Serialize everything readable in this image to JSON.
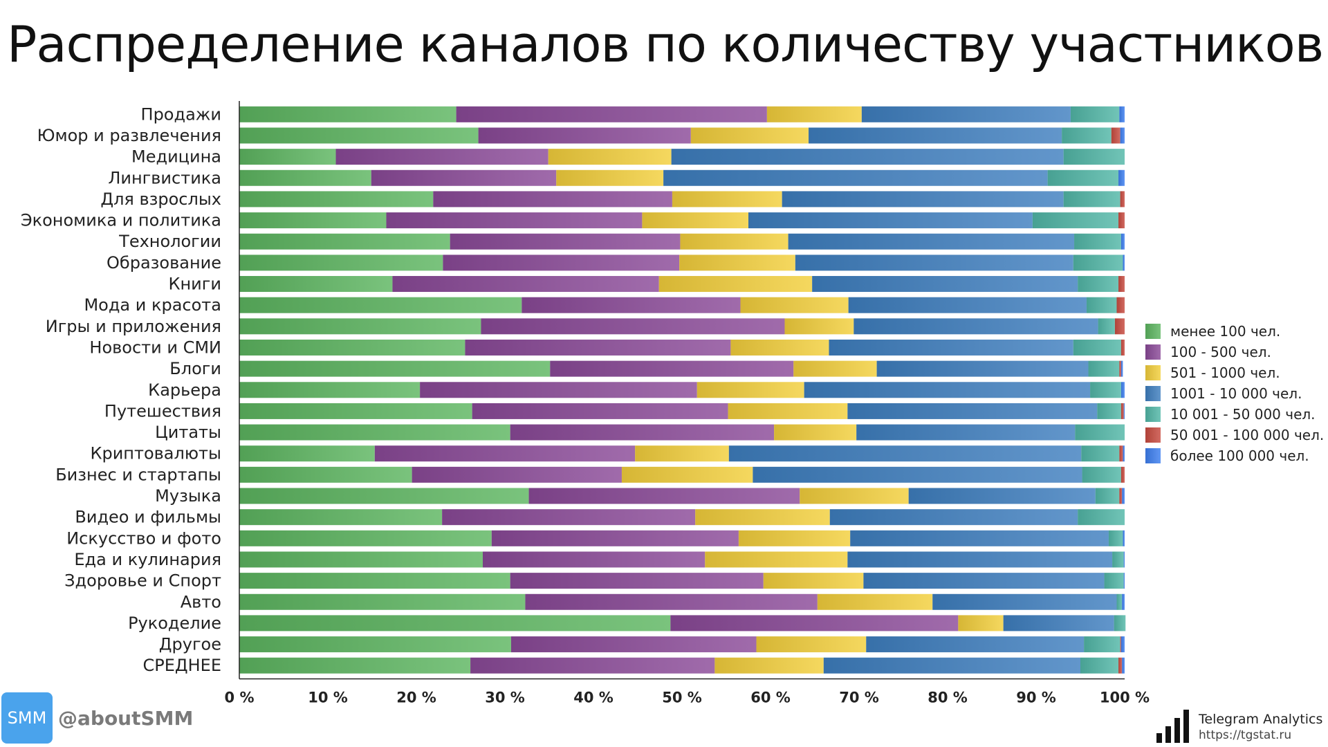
{
  "title": "Распределение каналов по количеству участников",
  "chart_data": {
    "type": "bar",
    "orientation": "horizontal",
    "stacked": true,
    "percent": true,
    "title": "Распределение каналов по количеству участников",
    "xlim": [
      0,
      100
    ],
    "xticks": [
      "0 %",
      "10 %",
      "20 %",
      "30 %",
      "40 %",
      "50 %",
      "60 %",
      "70 %",
      "80 %",
      "90 %",
      "100 %"
    ],
    "legend_position": "right",
    "categories": [
      "Продажи",
      "Юмор и развлечения",
      "Медицина",
      "Лингвистика",
      "Для взрослых",
      "Экономика и политика",
      "Технологии",
      "Образование",
      "Книги",
      "Мода и красота",
      "Игры и приложения",
      "Новости и СМИ",
      "Блоги",
      "Карьера",
      "Путешествия",
      "Цитаты",
      "Криптовалюты",
      "Бизнес и стартапы",
      "Музыка",
      "Видео и фильмы",
      "Искусство и фото",
      "Еда и кулинария",
      "Здоровье и Спорт",
      "Авто",
      "Рукоделие",
      "Другое",
      "СРЕДНЕЕ"
    ],
    "series": [
      {
        "name": "менее 100 чел.",
        "color": "#5db661",
        "values": [
          24.5,
          27.0,
          10.9,
          14.9,
          21.9,
          16.6,
          23.8,
          23.0,
          17.3,
          31.9,
          27.3,
          25.5,
          35.1,
          20.4,
          26.3,
          30.6,
          15.3,
          19.5,
          32.7,
          22.9,
          28.5,
          27.5,
          30.6,
          32.3,
          48.7,
          30.7,
          26.1
        ]
      },
      {
        "name": "100 - 500 чел.",
        "color": "#8b4a98",
        "values": [
          35.1,
          24.0,
          24.0,
          20.9,
          27.0,
          28.9,
          26.0,
          26.7,
          30.1,
          24.7,
          34.3,
          30.0,
          27.5,
          31.3,
          28.9,
          29.8,
          29.4,
          23.7,
          30.6,
          28.6,
          27.9,
          25.1,
          28.6,
          33.0,
          32.5,
          27.7,
          27.6
        ]
      },
      {
        "name": "501 - 1000 чел.",
        "color": "#f3cf3c",
        "values": [
          10.7,
          13.3,
          13.9,
          12.1,
          12.4,
          12.0,
          12.2,
          13.1,
          17.3,
          12.2,
          7.8,
          11.1,
          9.4,
          12.1,
          13.5,
          9.3,
          10.6,
          14.8,
          12.3,
          15.2,
          12.6,
          16.1,
          11.3,
          13.0,
          5.1,
          12.4,
          12.3
        ]
      },
      {
        "name": "1001 - 10 000 чел.",
        "color": "#3f7fc0",
        "values": [
          23.6,
          28.6,
          44.3,
          43.4,
          31.8,
          32.1,
          32.3,
          31.4,
          30.0,
          26.9,
          27.6,
          27.6,
          23.9,
          32.3,
          28.2,
          24.7,
          39.8,
          37.2,
          21.1,
          28.0,
          29.2,
          29.9,
          27.2,
          20.8,
          12.5,
          24.6,
          29.0
        ]
      },
      {
        "name": "10 001 - 50 000 чел.",
        "color": "#52b7a7",
        "values": [
          5.5,
          5.6,
          6.9,
          8.0,
          6.4,
          9.7,
          5.3,
          5.6,
          4.6,
          3.4,
          1.9,
          5.4,
          3.5,
          3.5,
          2.7,
          5.6,
          4.3,
          4.4,
          2.7,
          5.3,
          1.6,
          1.3,
          2.2,
          0.6,
          1.3,
          4.1,
          4.3
        ]
      },
      {
        "name": "50 001 - 100 000 чел.",
        "color": "#c84b40",
        "values": [
          0.0,
          1.0,
          0.0,
          0.0,
          0.5,
          0.7,
          0.0,
          0.0,
          0.7,
          0.9,
          1.1,
          0.4,
          0.2,
          0.0,
          0.3,
          0.0,
          0.4,
          0.4,
          0.3,
          0.0,
          0.0,
          0.0,
          0.0,
          0.0,
          0.0,
          0.1,
          0.4
        ]
      },
      {
        "name": "более 100 000 чел.",
        "color": "#3d7ff0",
        "values": [
          0.6,
          0.5,
          0.0,
          0.7,
          0.0,
          0.0,
          0.4,
          0.2,
          0.0,
          0.0,
          0.0,
          0.0,
          0.2,
          0.4,
          0.1,
          0.0,
          0.2,
          0.0,
          0.3,
          0.0,
          0.2,
          0.1,
          0.1,
          0.3,
          0.0,
          0.4,
          0.3
        ]
      }
    ]
  },
  "branding": {
    "badge": "SMM",
    "handle": "@aboutSMM",
    "name": "Telegram Analytics",
    "url": "https://tgstat.ru"
  }
}
